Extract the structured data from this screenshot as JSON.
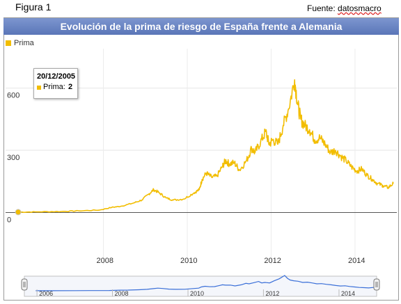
{
  "figure_label": "Figura 1",
  "source": {
    "prefix": "Fuente: ",
    "name": "datosmacro"
  },
  "tooltip": {
    "date": "20/12/2005",
    "series": "Prima:",
    "value": "2"
  },
  "colors": {
    "series": "#f2bd00",
    "navigator": "#3a6fd8",
    "title_bg": "#6a85c4"
  },
  "chart_data": {
    "type": "line",
    "title": "Evolución de la prima de riesgo de España frente a Alemania",
    "legend": "top-left",
    "series": [
      {
        "name": "Prima",
        "x": [
          "2005-12-20",
          "2006-06-01",
          "2007-01-01",
          "2007-06-01",
          "2007-12-01",
          "2008-03-15",
          "2008-06-01",
          "2008-09-15",
          "2008-12-01",
          "2009-02-01",
          "2009-03-15",
          "2009-05-01",
          "2009-07-01",
          "2009-09-01",
          "2009-12-01",
          "2010-03-01",
          "2010-04-15",
          "2010-05-10",
          "2010-06-15",
          "2010-08-01",
          "2010-09-15",
          "2010-11-01",
          "2010-11-30",
          "2011-01-01",
          "2011-02-15",
          "2011-04-01",
          "2011-06-01",
          "2011-07-15",
          "2011-08-15",
          "2011-10-01",
          "2011-11-15",
          "2011-12-15",
          "2012-01-15",
          "2012-03-01",
          "2012-04-15",
          "2012-06-01",
          "2012-07-24",
          "2012-08-20",
          "2012-09-15",
          "2012-10-20",
          "2012-12-01",
          "2013-01-15",
          "2013-03-01",
          "2013-04-15",
          "2013-06-01",
          "2013-07-15",
          "2013-09-01",
          "2013-10-15",
          "2013-12-01",
          "2014-01-15",
          "2014-03-01",
          "2014-04-15",
          "2014-06-01",
          "2014-07-15",
          "2014-09-01",
          "2014-10-15",
          "2014-12-01"
        ],
        "values": [
          2,
          3,
          5,
          8,
          12,
          25,
          30,
          45,
          60,
          90,
          110,
          95,
          70,
          60,
          65,
          95,
          110,
          160,
          190,
          170,
          175,
          220,
          250,
          235,
          240,
          205,
          250,
          310,
          290,
          340,
          390,
          330,
          350,
          330,
          420,
          500,
          640,
          520,
          450,
          420,
          400,
          350,
          360,
          330,
          290,
          300,
          270,
          250,
          220,
          200,
          210,
          180,
          160,
          140,
          130,
          120,
          140
        ]
      }
    ],
    "y_ticks": [
      0,
      300,
      600
    ],
    "x_ticks": [
      "2008",
      "2010",
      "2012",
      "2014"
    ],
    "ylim": [
      -250,
      790
    ],
    "xlim": [
      "2005-09-01",
      "2014-12-31"
    ],
    "navigator": {
      "ticks": [
        "2006",
        "2008",
        "2010",
        "2012",
        "2014"
      ]
    }
  }
}
